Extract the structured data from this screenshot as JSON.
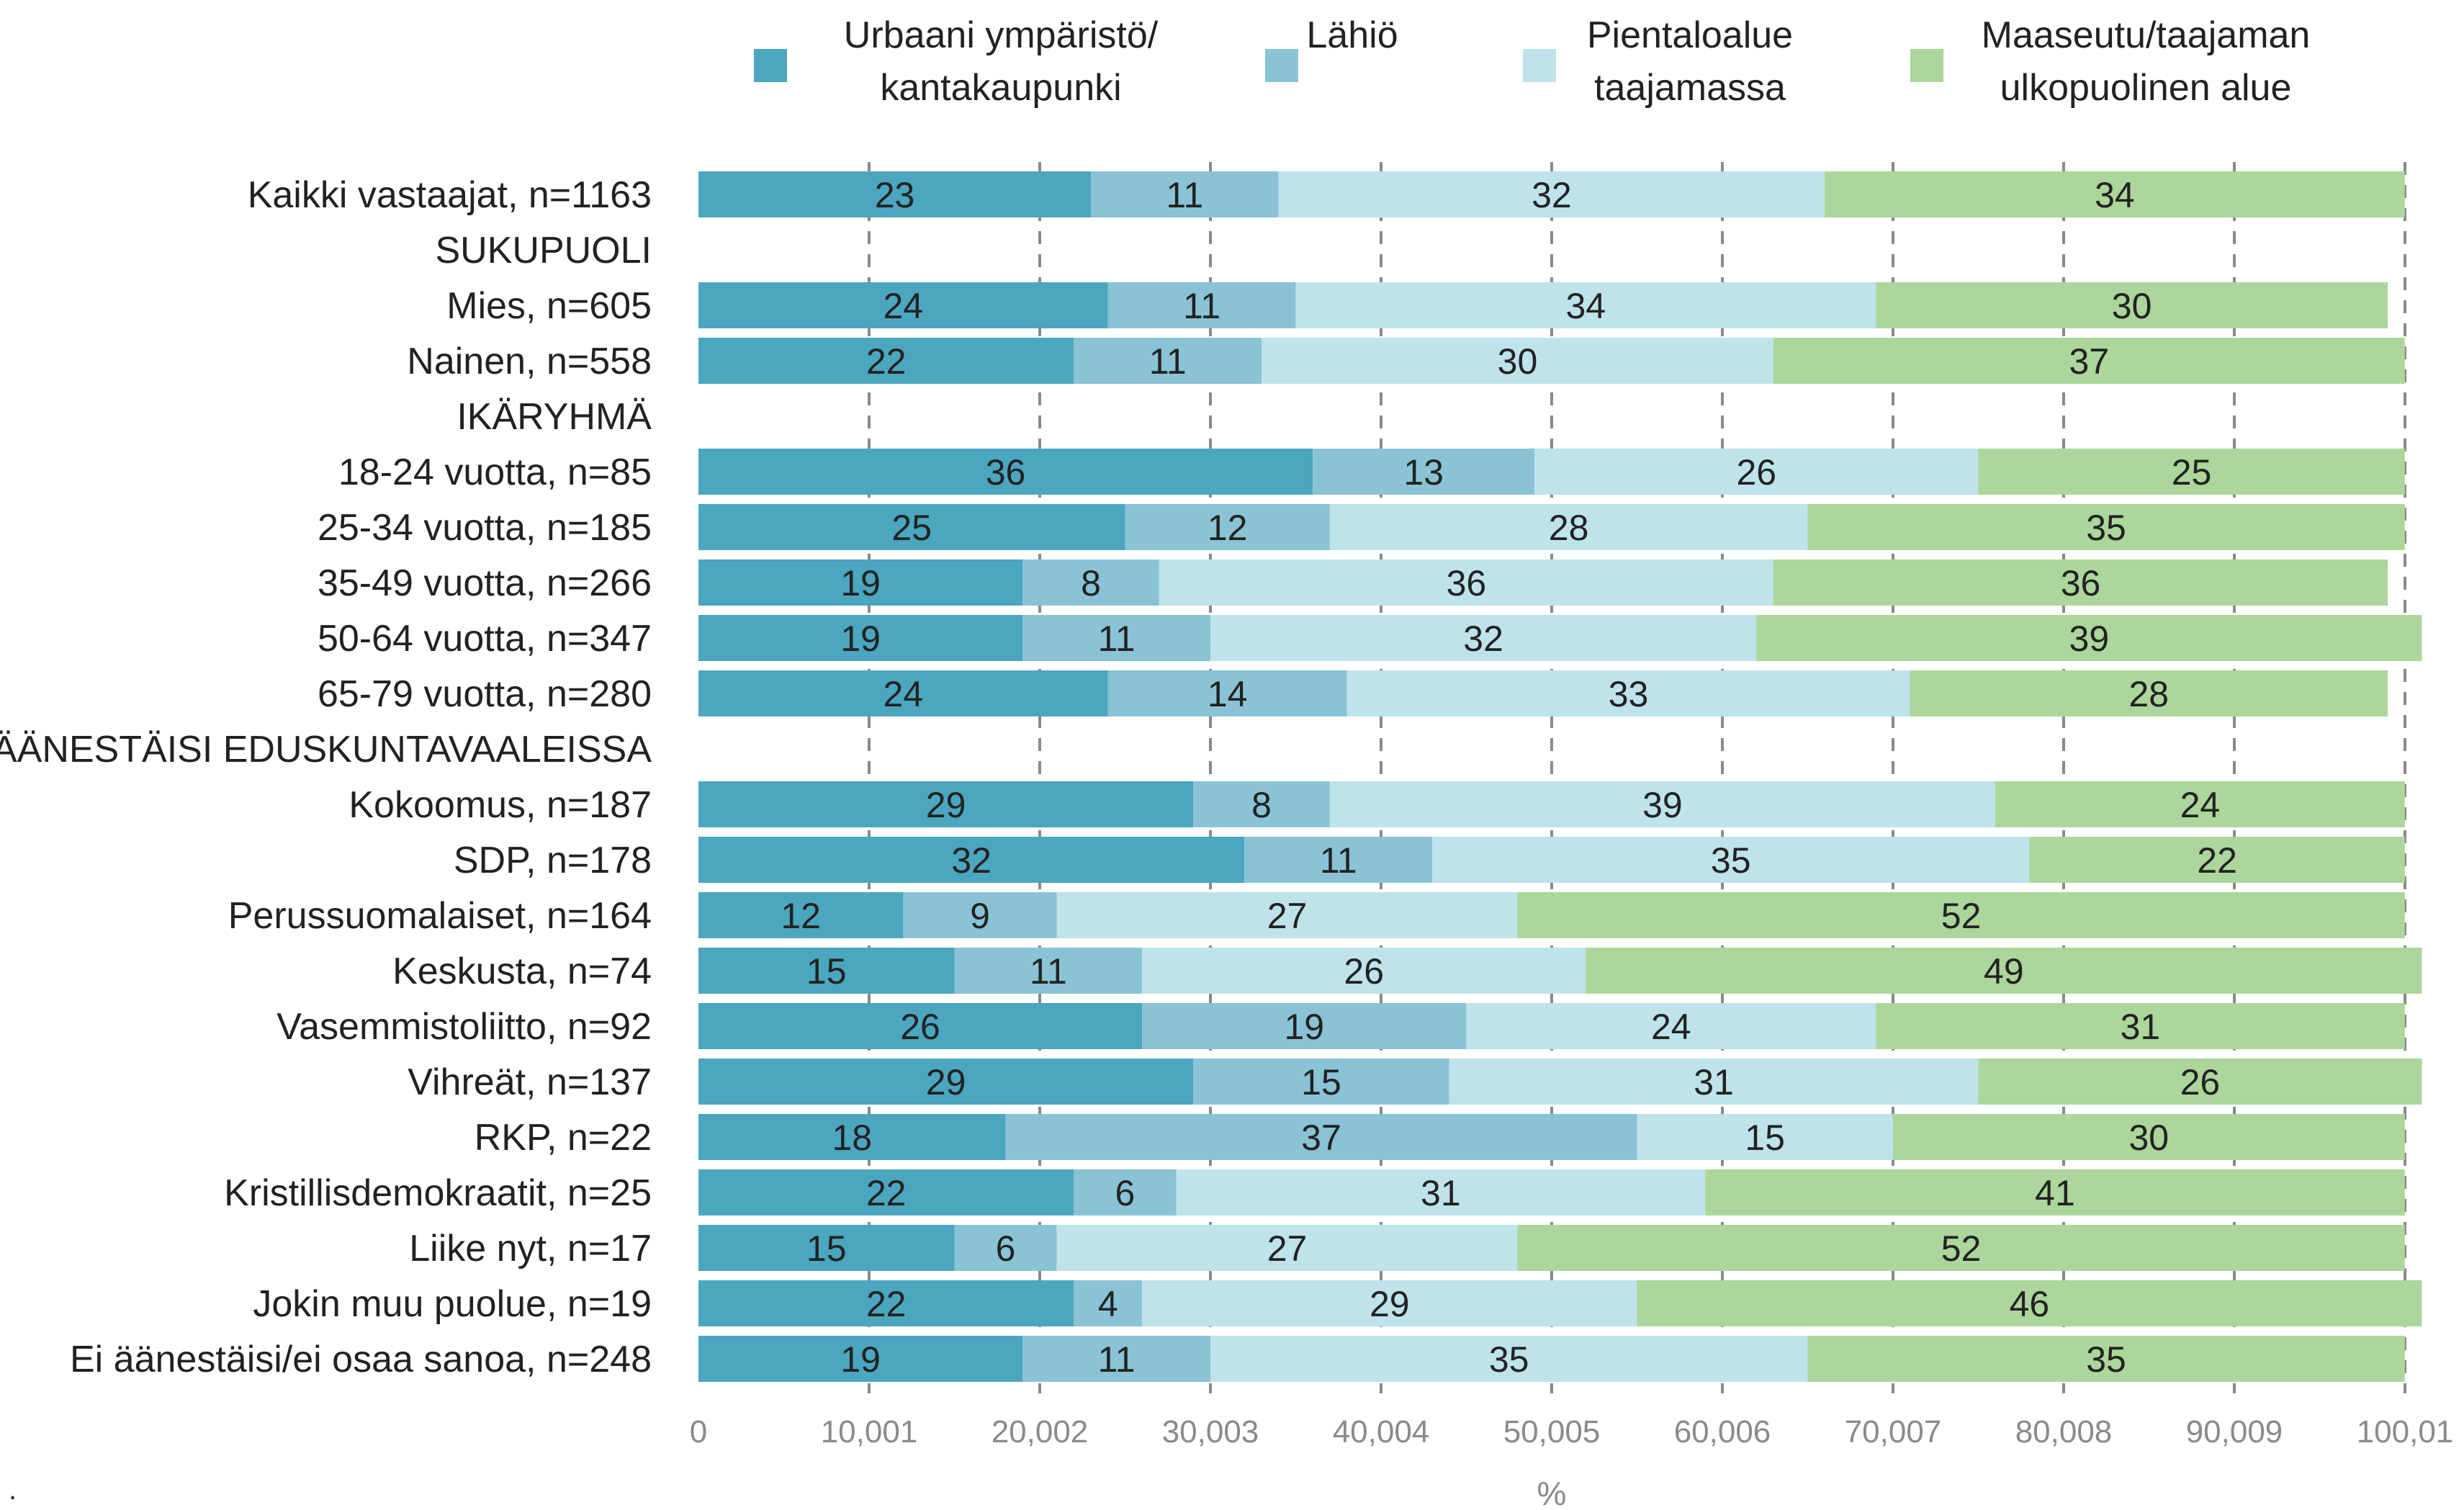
{
  "chart_data": {
    "type": "bar",
    "orientation": "horizontal",
    "stacked": true,
    "xlabel": "%",
    "xlim": [
      0,
      100.01
    ],
    "x_ticks": [
      "0",
      "10,001",
      "20,002",
      "30,003",
      "40,004",
      "50,005",
      "60,006",
      "70,007",
      "80,008",
      "90,009",
      "100,01"
    ],
    "grid": "vertical dashed",
    "legend_position": "top",
    "categories": [
      "Kaikki vastaajat, n=1163",
      "SUKUPUOLI",
      "Mies, n=605",
      "Nainen, n=558",
      "IKÄRYHMÄ",
      "18-24 vuotta, n=85",
      "25-34 vuotta, n=185",
      "35-49 vuotta, n=266",
      "50-64 vuotta, n=347",
      "65-79 vuotta, n=280",
      "ÄÄNESTÄISI EDUSKUNTAVAALEISSA",
      "Kokoomus, n=187",
      "SDP, n=178",
      "Perussuomalaiset, n=164",
      "Keskusta, n=74",
      "Vasemmistoliitto, n=92",
      "Vihreät, n=137",
      "RKP, n=22",
      "Kristillisdemokraatit, n=25",
      "Liike nyt, n=17",
      "Jokin muu puolue, n=19",
      "Ei äänestäisi/ei osaa sanoa, n=248"
    ],
    "series": [
      {
        "name": "Urbaani ympäristö/ kantakaupunki",
        "name_lines": [
          "Urbaani ympäristö/",
          "kantakaupunki"
        ],
        "color": "#4ba6bf",
        "values": [
          23,
          null,
          24,
          22,
          null,
          36,
          25,
          19,
          19,
          24,
          null,
          29,
          32,
          12,
          15,
          26,
          29,
          18,
          22,
          15,
          22,
          19
        ]
      },
      {
        "name": "Lähiö",
        "name_lines": [
          "Lähiö"
        ],
        "color": "#89c3d5",
        "values": [
          11,
          null,
          11,
          11,
          null,
          13,
          12,
          8,
          11,
          14,
          null,
          8,
          11,
          9,
          11,
          19,
          15,
          37,
          6,
          6,
          4,
          11
        ]
      },
      {
        "name": "Pientaloalue taajamassa",
        "name_lines": [
          "Pientaloalue",
          "taajamassa"
        ],
        "color": "#bee3ea",
        "values": [
          32,
          null,
          34,
          30,
          null,
          26,
          28,
          36,
          32,
          33,
          null,
          39,
          35,
          27,
          26,
          24,
          31,
          15,
          31,
          27,
          29,
          35
        ]
      },
      {
        "name": "Maaseutu/taajaman ulkopuolinen alue",
        "name_lines": [
          "Maaseutu/taajaman",
          "ulkopuolinen alue"
        ],
        "color": "#acd69b",
        "values": [
          34,
          null,
          30,
          37,
          null,
          25,
          35,
          36,
          39,
          28,
          null,
          24,
          22,
          52,
          49,
          31,
          26,
          30,
          41,
          52,
          46,
          35
        ]
      }
    ]
  },
  "footnote_mark": "."
}
